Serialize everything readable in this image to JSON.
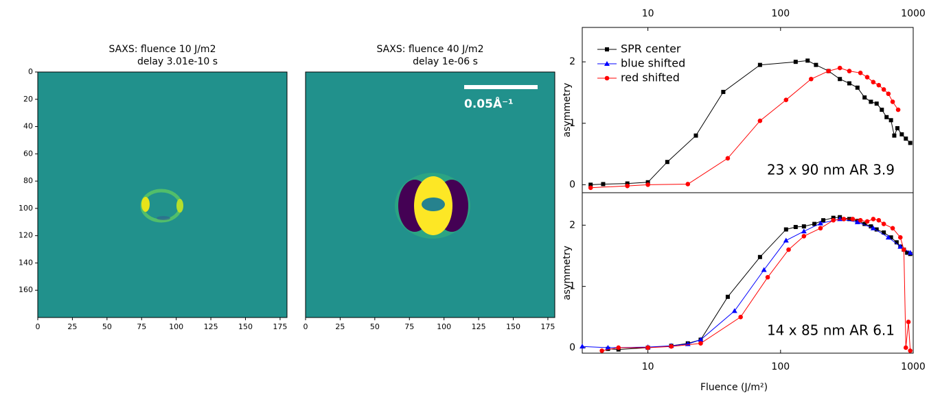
{
  "chart_data": [
    {
      "type": "image",
      "title": "SAXS: fluence   10  J/m2",
      "subtitle": "delay 3.01e-10 s",
      "xlim": [
        0,
        180
      ],
      "ylim": [
        180,
        0
      ],
      "xticks": [
        0,
        25,
        50,
        75,
        100,
        125,
        150,
        175
      ],
      "yticks": [
        0,
        20,
        40,
        60,
        80,
        100,
        120,
        140,
        160
      ]
    },
    {
      "type": "image",
      "title": "SAXS: fluence   40  J/m2",
      "subtitle": "delay 1e-06 s",
      "annotation": "0.05Å⁻¹",
      "xlim": [
        0,
        180
      ],
      "ylim": [
        180,
        0
      ],
      "xticks": [
        0,
        25,
        50,
        75,
        100,
        125,
        150,
        175
      ]
    },
    {
      "type": "line",
      "xlog": true,
      "xaxis_position": "top",
      "legend": "upper left",
      "ylabel": "asymmetry",
      "annotation": "23 x 90 nm AR 3.9",
      "xlim": [
        3.2,
        1000
      ],
      "xticks": [
        10,
        100,
        1000
      ],
      "ylim": [
        -0.13,
        2.56
      ],
      "yticks": [
        0,
        1,
        2
      ],
      "series": [
        {
          "name": "SPR center",
          "color": "#000000",
          "marker": "square",
          "x": [
            3.7,
            4.6,
            7,
            10,
            14,
            23,
            37,
            70,
            130,
            160,
            185,
            230,
            280,
            330,
            380,
            430,
            480,
            530,
            580,
            630,
            680,
            720,
            760,
            820,
            880,
            950
          ],
          "values": [
            0,
            0.01,
            0.02,
            0.04,
            0.37,
            0.8,
            1.51,
            1.95,
            2.0,
            2.02,
            1.95,
            1.85,
            1.72,
            1.65,
            1.58,
            1.42,
            1.35,
            1.32,
            1.22,
            1.1,
            1.05,
            0.8,
            0.92,
            0.82,
            0.75,
            0.68
          ]
        },
        {
          "name": "blue shifted",
          "color": "#0000ff",
          "marker": "triangle",
          "x": [],
          "values": []
        },
        {
          "name": "red shifted",
          "color": "#ff0000",
          "marker": "circle",
          "x": [
            3.7,
            7,
            10,
            20,
            40,
            70,
            110,
            170,
            230,
            280,
            330,
            400,
            450,
            500,
            550,
            600,
            650,
            700,
            770
          ],
          "values": [
            -0.05,
            -0.02,
            0,
            0.01,
            0.43,
            1.04,
            1.38,
            1.72,
            1.85,
            1.9,
            1.85,
            1.82,
            1.75,
            1.67,
            1.62,
            1.55,
            1.48,
            1.35,
            1.22
          ]
        }
      ]
    },
    {
      "type": "line",
      "xlog": true,
      "xaxis_position": "bottom",
      "xlabel": "Fluence (J/m²)",
      "ylabel": "asymmetry",
      "annotation": "14 x 85 nm AR 6.1",
      "xlim": [
        3.2,
        1000
      ],
      "xticks": [
        10,
        100,
        1000
      ],
      "ylim": [
        -0.09,
        2.53
      ],
      "yticks": [
        0,
        1,
        2
      ],
      "series": [
        {
          "color": "#000000",
          "marker": "square",
          "x": [
            5,
            6,
            10,
            15,
            20,
            25,
            40,
            70,
            110,
            130,
            150,
            180,
            210,
            250,
            280,
            330,
            380,
            430,
            480,
            530,
            600,
            680,
            750,
            800,
            850,
            900,
            950
          ],
          "values": [
            -0.02,
            -0.03,
            0,
            0.03,
            0.07,
            0.13,
            0.83,
            1.48,
            1.93,
            1.97,
            1.98,
            2.02,
            2.08,
            2.12,
            2.13,
            2.1,
            2.07,
            2.02,
            1.98,
            1.93,
            1.88,
            1.8,
            1.72,
            1.65,
            1.6,
            1.55,
            1.53
          ]
        },
        {
          "color": "#0000ff",
          "marker": "triangle",
          "x": [
            3.2,
            5,
            10,
            15,
            20,
            25,
            45,
            75,
            110,
            150,
            200,
            280,
            380,
            500,
            650,
            800,
            950
          ],
          "values": [
            0.02,
            0,
            0.01,
            0.03,
            0.06,
            0.13,
            0.6,
            1.27,
            1.75,
            1.9,
            2.03,
            2.1,
            2.05,
            1.95,
            1.8,
            1.65,
            1.55
          ]
        },
        {
          "color": "#ff0000",
          "marker": "circle",
          "x": [
            4.5,
            6,
            10,
            15,
            25,
            50,
            80,
            115,
            150,
            200,
            250,
            300,
            350,
            400,
            450,
            500,
            550,
            600,
            700,
            800,
            850,
            880,
            920,
            950
          ],
          "values": [
            -0.05,
            0,
            0,
            0.02,
            0.07,
            0.5,
            1.15,
            1.6,
            1.82,
            1.95,
            2.08,
            2.1,
            2.1,
            2.08,
            2.06,
            2.1,
            2.08,
            2.02,
            1.95,
            1.8,
            1.6,
            0.0,
            0.42,
            -0.05
          ]
        }
      ]
    }
  ]
}
